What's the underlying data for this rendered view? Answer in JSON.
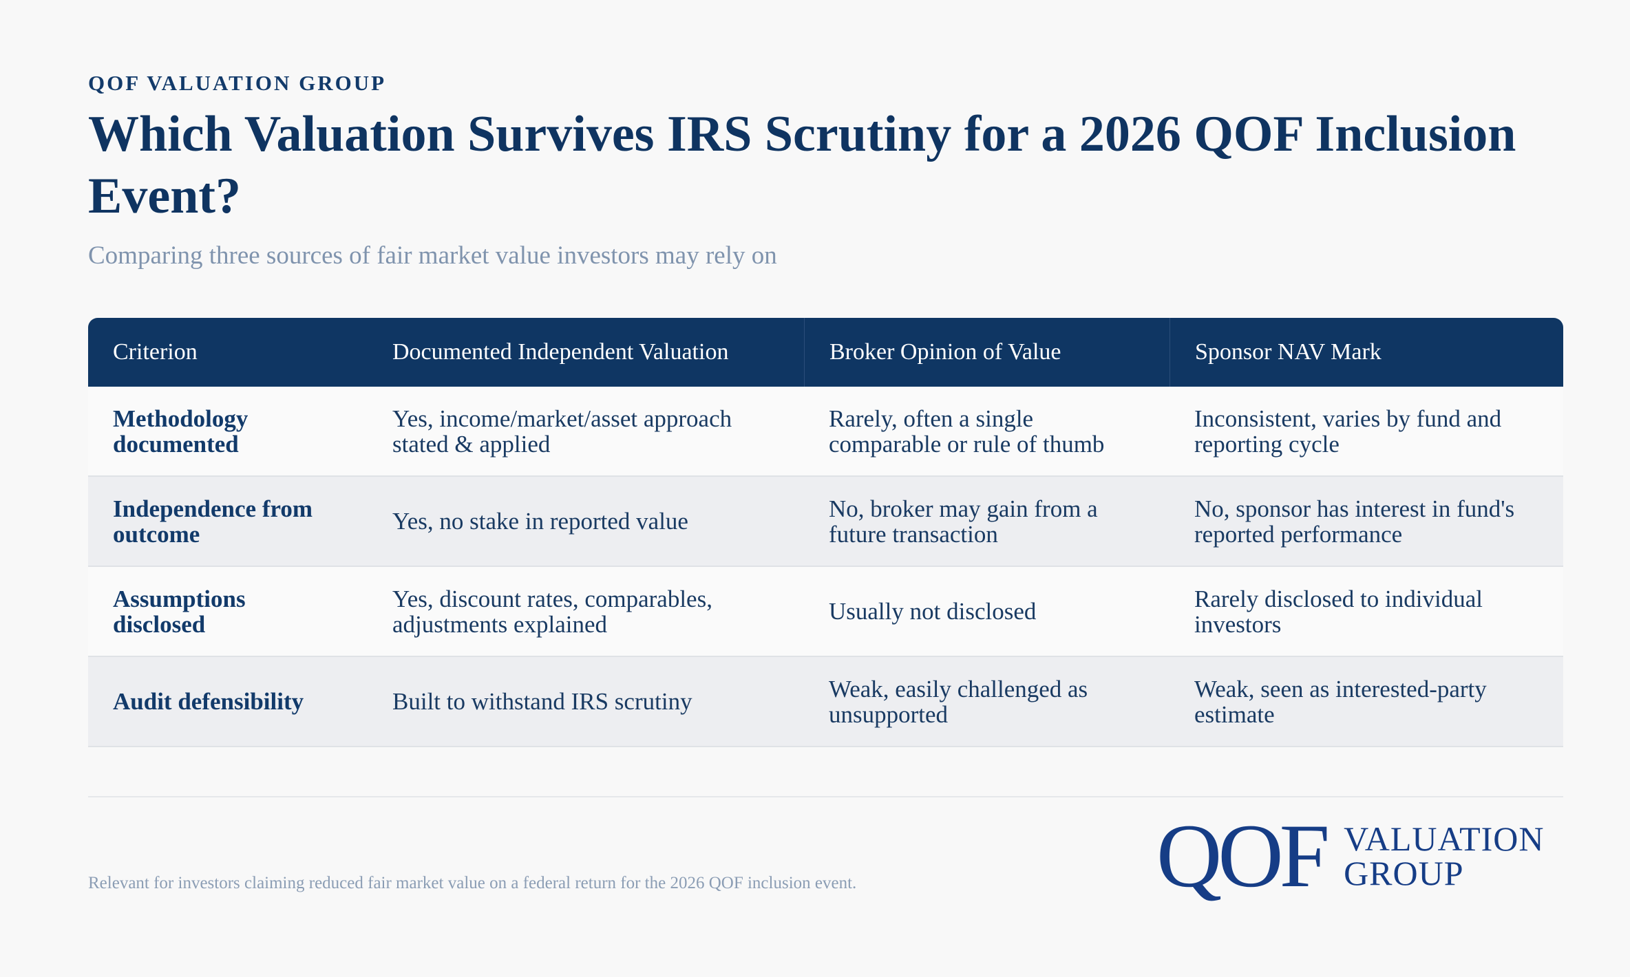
{
  "header": {
    "eyebrow": "QOF VALUATION GROUP",
    "title": "Which Valuation Survives IRS Scrutiny for a 2026 QOF Inclusion Event?",
    "subtitle": "Comparing three sources of fair market value investors may rely on"
  },
  "table": {
    "columns": [
      "Criterion",
      "Documented Independent Valuation",
      "Broker Opinion of Value",
      "Sponsor NAV Mark"
    ],
    "rows": [
      [
        "Methodology documented",
        "Yes, income/market/asset approach stated & applied",
        "Rarely, often a single comparable or rule of thumb",
        "Inconsistent, varies by fund and reporting cycle"
      ],
      [
        "Independence from outcome",
        "Yes, no stake in reported value",
        "No, broker may gain from a future transaction",
        "No, sponsor has interest in fund's reported performance"
      ],
      [
        "Assumptions disclosed",
        "Yes, discount rates, comparables, adjustments explained",
        "Usually not disclosed",
        "Rarely disclosed to individual investors"
      ],
      [
        "Audit defensibility",
        "Built to withstand IRS scrutiny",
        "Weak, easily challenged as unsupported",
        "Weak, seen as interested-party estimate"
      ]
    ]
  },
  "footer": {
    "note": "Relevant for investors claiming reduced fair market value on a federal return for the 2026 QOF inclusion event.",
    "logo_mark": "QOF",
    "logo_line1": "VALUATION",
    "logo_line2": "GROUP"
  },
  "colors": {
    "navy": "#0f3663",
    "accent_blue": "#163d86",
    "muted": "#7f93ad",
    "band": "#edeef1"
  }
}
